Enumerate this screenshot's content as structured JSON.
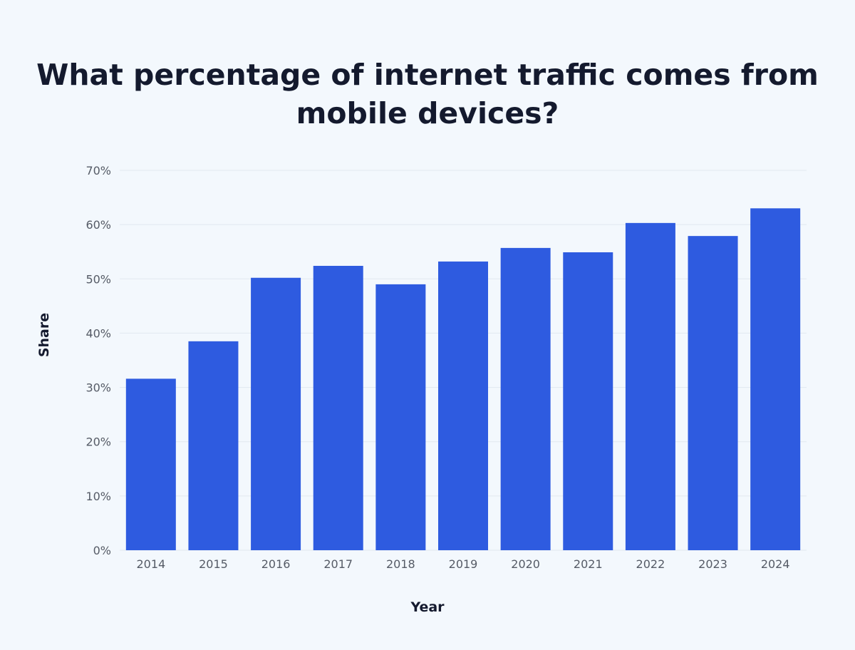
{
  "chart_data": {
    "type": "bar",
    "title": "What percentage of internet traffic comes from mobile devices?",
    "xlabel": "Year",
    "ylabel": "Share",
    "categories": [
      "2014",
      "2015",
      "2016",
      "2017",
      "2018",
      "2019",
      "2020",
      "2021",
      "2022",
      "2023",
      "2024"
    ],
    "values": [
      31.6,
      38.5,
      50.2,
      52.4,
      49.0,
      53.2,
      55.7,
      54.9,
      60.3,
      57.9,
      63.0
    ],
    "ylim": [
      0,
      70
    ],
    "yticks": [
      0,
      10,
      20,
      30,
      40,
      50,
      60,
      70
    ],
    "ytick_labels": [
      "0%",
      "10%",
      "20%",
      "30%",
      "40%",
      "50%",
      "60%",
      "70%"
    ],
    "grid": true,
    "legend": "none",
    "colors": {
      "bar": "#2e5be0",
      "background": "#f3f8fd",
      "grid": "#e1e8f0",
      "title": "#141a2e"
    }
  }
}
